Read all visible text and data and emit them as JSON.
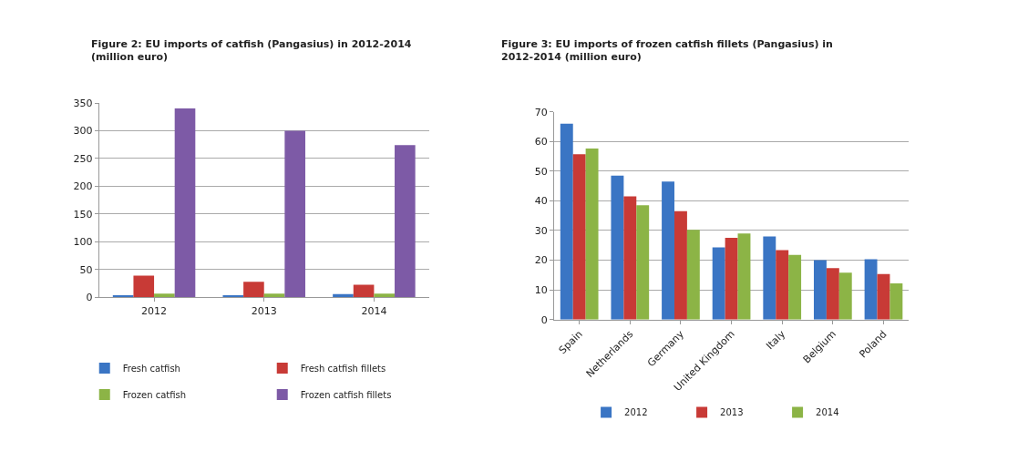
{
  "chart_data": [
    {
      "type": "bar",
      "title": "Figure 2: EU imports of catfish (Pangasius) in 2012-2014 (million euro)",
      "categories": [
        "2012",
        "2013",
        "2014"
      ],
      "series": [
        {
          "name": "Fresh catfish",
          "color": "#3a75c4",
          "values": [
            4,
            4,
            6
          ]
        },
        {
          "name": "Fresh catfish fillets",
          "color": "#c83a36",
          "values": [
            39,
            28,
            23
          ]
        },
        {
          "name": "Frozen catfish",
          "color": "#8cb446",
          "values": [
            7,
            7,
            7
          ]
        },
        {
          "name": "Frozen catfish fillets",
          "color": "#7d5aa6",
          "values": [
            340,
            300,
            274
          ]
        }
      ],
      "ylim": [
        0,
        350
      ],
      "yticks": [
        0,
        50,
        100,
        150,
        200,
        250,
        300,
        350
      ],
      "grid": "y",
      "legend": "bottom"
    },
    {
      "type": "bar",
      "title": "Figure 3: EU imports of frozen catfish fillets (Pangasius) in 2012-2014 (million euro)",
      "categories": [
        "Spain",
        "Netherlands",
        "Germany",
        "United Kingdom",
        "Italy",
        "Belgium",
        "Poland"
      ],
      "series": [
        {
          "name": "2012",
          "color": "#3a75c4",
          "values": [
            66,
            48.5,
            46.5,
            24.3,
            28,
            20,
            20.3
          ]
        },
        {
          "name": "2013",
          "color": "#c83a36",
          "values": [
            55.7,
            41.5,
            36.5,
            27.5,
            23.4,
            17.3,
            15.3
          ]
        },
        {
          "name": "2014",
          "color": "#8cb446",
          "values": [
            57.6,
            38.5,
            30.2,
            29,
            21.8,
            15.8,
            12.2
          ]
        }
      ],
      "ylim": [
        0,
        70
      ],
      "yticks": [
        0,
        10,
        20,
        30,
        40,
        50,
        60,
        70
      ],
      "grid": "y",
      "legend": "bottom"
    }
  ]
}
